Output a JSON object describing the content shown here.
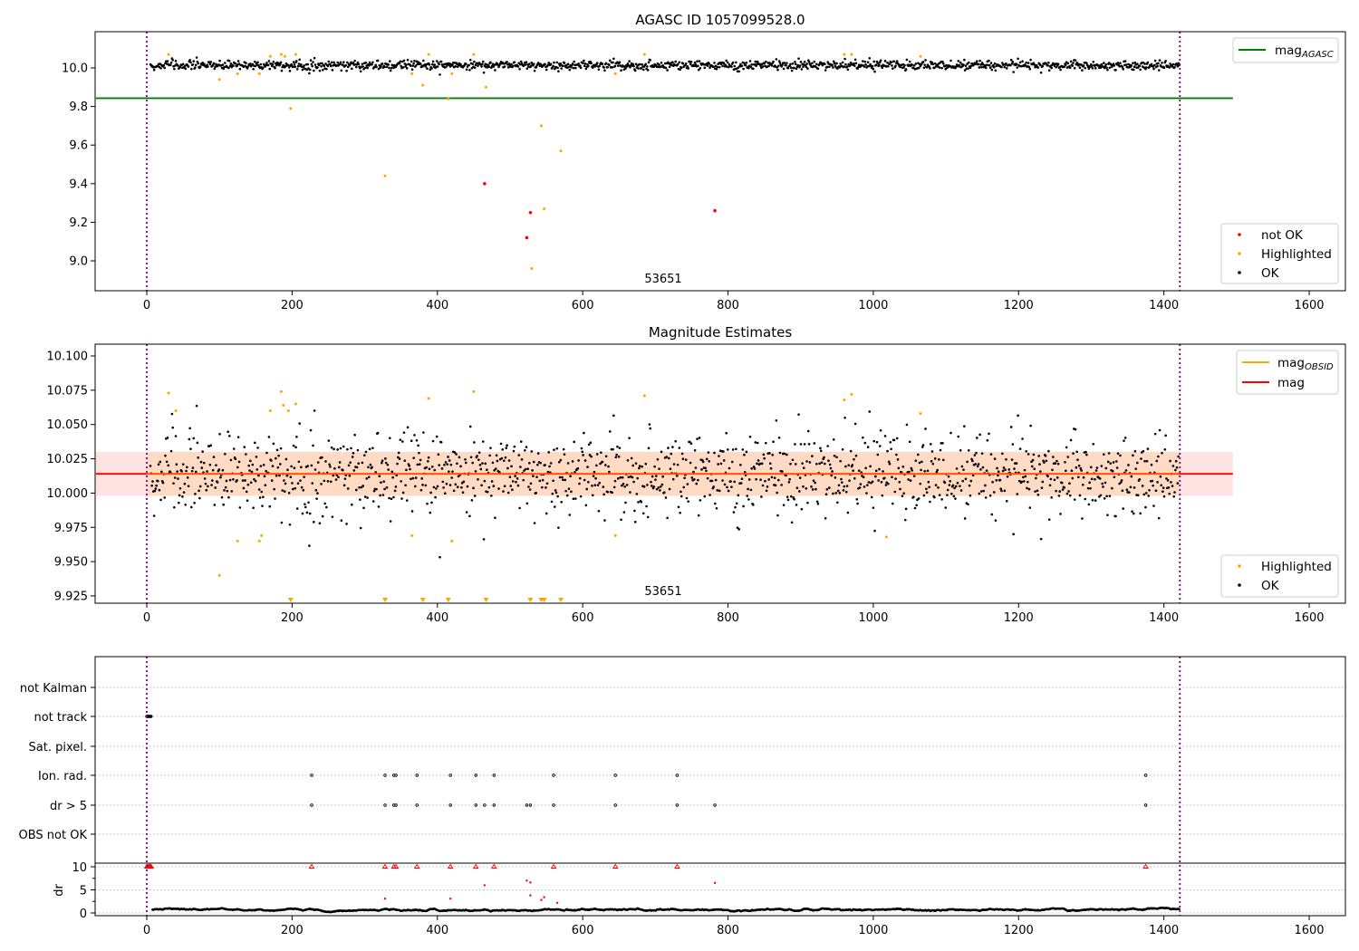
{
  "chart_data": [
    {
      "type": "scatter",
      "title": "AGASC ID 1057099528.0",
      "xlim": [
        -70,
        1650
      ],
      "ylim": [
        8.85,
        10.19
      ],
      "xticks": [
        0,
        200,
        400,
        600,
        800,
        1000,
        1200,
        1400,
        1600
      ],
      "yticks": [
        9.0,
        9.2,
        9.4,
        9.6,
        9.8,
        10.0
      ],
      "yticklabels": [
        "9.0",
        "9.2",
        "9.4",
        "9.6",
        "9.8",
        "10.0"
      ],
      "vlines": [
        0,
        1422
      ],
      "vline_color": "#800080",
      "agasc_line": {
        "y": 9.843,
        "x": [
          -70,
          1495
        ],
        "color": "#008000"
      },
      "annotation": "53651",
      "legend_line": [
        {
          "label": "mag",
          "sub": "AGASC",
          "color": "#008000"
        }
      ],
      "legend_points": [
        {
          "label": "not OK",
          "color": "#ff0000"
        },
        {
          "label": "Highlighted",
          "color": "#ffa500"
        },
        {
          "label": "OK",
          "color": "#000000"
        }
      ],
      "highlighted": [
        [
          30,
          10.07
        ],
        [
          100,
          9.94
        ],
        [
          125,
          9.97
        ],
        [
          155,
          9.97
        ],
        [
          170,
          10.06
        ],
        [
          185,
          10.07
        ],
        [
          190,
          10.06
        ],
        [
          198,
          9.79
        ],
        [
          205,
          10.07
        ],
        [
          328,
          9.44
        ],
        [
          365,
          9.97
        ],
        [
          380,
          9.91
        ],
        [
          388,
          10.07
        ],
        [
          415,
          9.84
        ],
        [
          420,
          9.97
        ],
        [
          450,
          10.07
        ],
        [
          467,
          9.9
        ],
        [
          530,
          8.96
        ],
        [
          543,
          9.7
        ],
        [
          547,
          9.27
        ],
        [
          570,
          9.57
        ],
        [
          645,
          9.97
        ],
        [
          685,
          10.07
        ],
        [
          960,
          10.07
        ],
        [
          970,
          10.07
        ],
        [
          1065,
          10.06
        ]
      ],
      "not_ok": [
        [
          465,
          9.4
        ],
        [
          523,
          9.12
        ],
        [
          528,
          9.25
        ],
        [
          782,
          9.26
        ]
      ],
      "ok_model": {
        "x_start": 5,
        "x_end": 1422,
        "count": 1380,
        "offset": 0.0,
        "std": 0.012
      }
    },
    {
      "type": "scatter",
      "title": "Magnitude Estimates",
      "xlim": [
        -70,
        1650
      ],
      "ylim": [
        9.92,
        10.109
      ],
      "xticks": [
        0,
        200,
        400,
        600,
        800,
        1000,
        1200,
        1400,
        1600
      ],
      "yticks": [
        9.925,
        9.95,
        9.975,
        10.0,
        10.025,
        10.05,
        10.075,
        10.1
      ],
      "yticklabels": [
        "9.925",
        "9.950",
        "9.975",
        "10.000",
        "10.025",
        "10.050",
        "10.075",
        "10.100"
      ],
      "mag_line": {
        "y": 10.014,
        "band": [
          9.998,
          10.03
        ],
        "x": [
          -70,
          1495
        ],
        "color": "#ff0000"
      },
      "obsid_band_color": "#ffa500",
      "annotation": "53651",
      "legend_line": [
        {
          "label": "mag",
          "sub": "OBSID",
          "color": "#ffa500"
        },
        {
          "label": "mag",
          "sub": "",
          "color": "#ff0000"
        }
      ],
      "legend_points": [
        {
          "label": "Highlighted",
          "color": "#ffa500"
        },
        {
          "label": "OK",
          "color": "#000000"
        }
      ],
      "highlighted": [
        [
          30,
          10.073
        ],
        [
          40,
          10.06
        ],
        [
          100,
          9.94
        ],
        [
          125,
          9.965
        ],
        [
          155,
          9.965
        ],
        [
          158,
          9.969
        ],
        [
          170,
          10.06
        ],
        [
          185,
          10.074
        ],
        [
          188,
          10.064
        ],
        [
          195,
          10.06
        ],
        [
          205,
          10.065
        ],
        [
          365,
          9.969
        ],
        [
          388,
          10.069
        ],
        [
          420,
          9.965
        ],
        [
          450,
          10.074
        ],
        [
          645,
          9.969
        ],
        [
          685,
          10.071
        ],
        [
          960,
          10.068
        ],
        [
          970,
          10.072
        ],
        [
          1018,
          9.968
        ],
        [
          1065,
          10.058
        ]
      ],
      "below_range": [
        198,
        328,
        380,
        415,
        467,
        528,
        543,
        547,
        570
      ],
      "ok_model": {
        "x_start": 5,
        "x_end": 1422,
        "count": 1380,
        "mean": 10.014,
        "std": 0.015
      }
    },
    {
      "type": "scatter",
      "categories": [
        "not Kalman",
        "not track",
        "Sat. pixel.",
        "Ion. rad.",
        "dr > 5",
        "OBS not OK"
      ],
      "ylabel": "dr",
      "dr_yticks": [
        0,
        5,
        10
      ],
      "xlim": [
        -70,
        1650
      ],
      "xticks": [
        0,
        200,
        400,
        600,
        800,
        1000,
        1200,
        1400,
        1600
      ],
      "flags": {
        "not track": [
          0,
          1,
          2,
          3,
          4,
          5,
          6
        ],
        "Ion. rad.": [
          227,
          328,
          340,
          343,
          372,
          418,
          453,
          478,
          560,
          645,
          730,
          1375
        ],
        "dr > 5": [
          227,
          328,
          340,
          343,
          372,
          418,
          453,
          465,
          478,
          523,
          528,
          560,
          645,
          730,
          782,
          1375
        ]
      },
      "dr_capped": [
        0,
        1,
        2,
        3,
        4,
        5,
        6,
        227,
        328,
        340,
        343,
        372,
        418,
        453,
        478,
        560,
        645,
        730,
        1375
      ],
      "dr_red": [
        [
          328,
          3.1
        ],
        [
          418,
          3.1
        ],
        [
          465,
          6
        ],
        [
          523,
          7
        ],
        [
          528,
          6.6
        ],
        [
          528,
          3.8
        ],
        [
          543,
          2.8
        ],
        [
          547,
          3.4
        ],
        [
          565,
          2.2
        ],
        [
          782,
          6.5
        ]
      ],
      "dr_model": {
        "x_start": 8,
        "x_end": 1422,
        "count": 1400,
        "mean": 0.7,
        "std": 0.25
      }
    }
  ]
}
